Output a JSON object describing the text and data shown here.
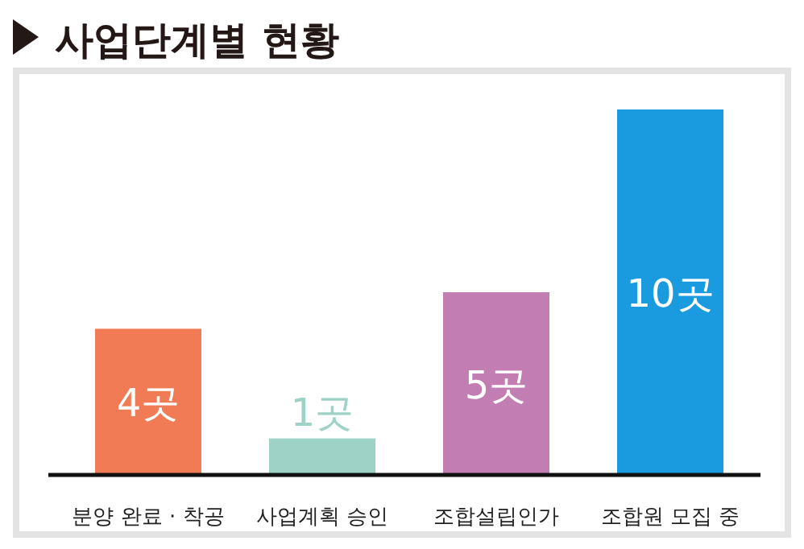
{
  "chart_data": {
    "type": "bar",
    "title": "사업단계별 현황",
    "categories": [
      "분양 완료 · 착공",
      "사업계획 승인",
      "조합설립인가",
      "조합원 모집 중"
    ],
    "values": [
      4,
      1,
      5,
      10
    ],
    "colors": [
      "#f07b54",
      "#9fd2c6",
      "#c27db3",
      "#1a9be0"
    ],
    "value_labels": [
      "4곳",
      "1곳",
      "5곳",
      "10곳"
    ]
  }
}
